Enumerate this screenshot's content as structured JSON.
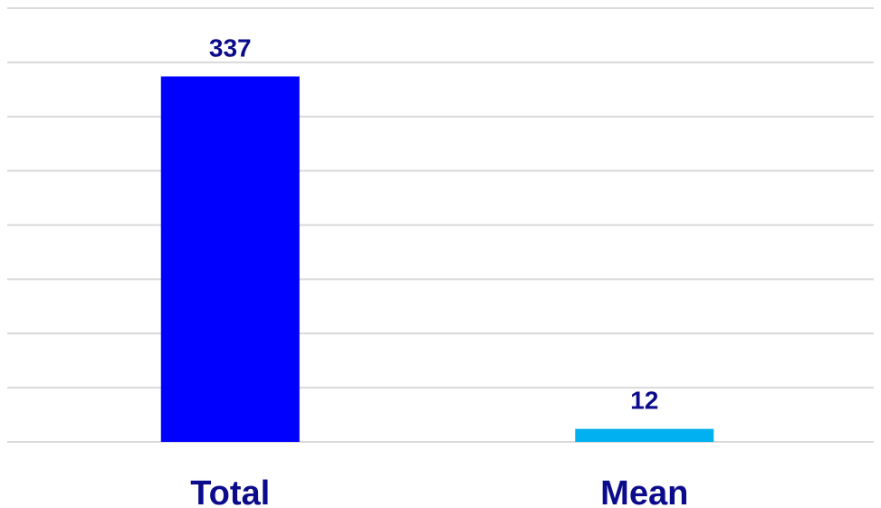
{
  "chart_data": {
    "type": "bar",
    "title": "",
    "xlabel": "",
    "ylabel": "",
    "categories": [
      "Total",
      "Mean"
    ],
    "values": [
      337,
      12
    ],
    "data_labels": [
      "337",
      "12"
    ],
    "ylim": [
      0,
      400
    ],
    "gridlines": true,
    "legend": "none",
    "colors": {
      "bars": [
        "#0000ff",
        "#00b0f0"
      ],
      "labels": "#0b0b8c",
      "grid": "#d9d9d9"
    }
  }
}
